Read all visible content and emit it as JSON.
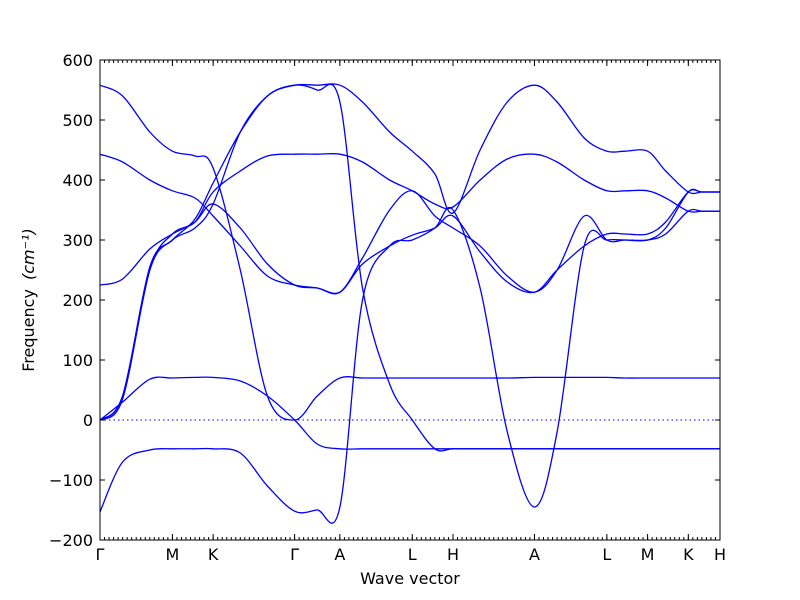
{
  "chart_data": {
    "type": "line",
    "xlabel": "Wave vector",
    "ylabel": "Frequency",
    "ylabel_unit": "(cm⁻¹)",
    "ylim": [
      -200,
      600
    ],
    "yticks": [
      -200,
      -100,
      0,
      100,
      200,
      300,
      400,
      500,
      600
    ],
    "ytick_labels": [
      "−200",
      "−100",
      "0",
      "100",
      "200",
      "300",
      "400",
      "500",
      "600"
    ],
    "xlim": [
      0,
      13.7
    ],
    "x_high_symmetry": [
      {
        "label": "Γ",
        "x": 0
      },
      {
        "label": "M",
        "x": 1.6
      },
      {
        "label": "K",
        "x": 2.5
      },
      {
        "label": "Γ",
        "x": 4.3
      },
      {
        "label": "A",
        "x": 5.3
      },
      {
        "label": "L",
        "x": 6.9
      },
      {
        "label": "H",
        "x": 7.8
      },
      {
        "label": "A",
        "x": 9.6
      },
      {
        "label": "L",
        "x": 11.2
      },
      {
        "label": "M",
        "x": 12.1
      },
      {
        "label": "K",
        "x": 13.0
      },
      {
        "label": "H",
        "x": 13.7
      }
    ],
    "zero_line": true,
    "grid": false,
    "colors": {
      "bands": "#0000ff",
      "frame": "#000000"
    },
    "series": [
      {
        "x": [
          0,
          0.5,
          1.1,
          1.6,
          2.1,
          2.5,
          3.1,
          3.7,
          4.3,
          4.8,
          5.3,
          5.8,
          6.4,
          6.9,
          7.4,
          7.8,
          8.4,
          9.0,
          9.6,
          10.1,
          10.7,
          11.2,
          11.6,
          12.1,
          12.5,
          13.0,
          13.3,
          13.7
        ],
        "values": [
          0,
          40,
          255,
          300,
          335,
          395,
          480,
          540,
          558,
          558,
          558,
          530,
          480,
          448,
          410,
          345,
          450,
          530,
          558,
          530,
          470,
          448,
          448,
          448,
          415,
          380,
          380,
          380
        ]
      },
      {
        "x": [
          0,
          0.5,
          1.1,
          1.6,
          2.1,
          2.5,
          3.1,
          3.7,
          4.3,
          4.8,
          5.3,
          5.8,
          6.4,
          6.9,
          7.4,
          7.8,
          8.4,
          9.0,
          9.6,
          10.1,
          10.7,
          11.2,
          11.6,
          12.1,
          12.5,
          13.0,
          13.3,
          13.7
        ],
        "values": [
          0,
          35,
          250,
          310,
          330,
          380,
          415,
          440,
          443,
          443,
          443,
          430,
          400,
          382,
          360,
          355,
          400,
          435,
          443,
          430,
          400,
          382,
          382,
          382,
          370,
          348,
          348,
          348
        ]
      },
      {
        "x": [
          0,
          0.5,
          1.1,
          1.6,
          2.1,
          2.5,
          3.1,
          3.7,
          4.3,
          4.8,
          5.3,
          5.8,
          6.4,
          6.9,
          7.4,
          7.8,
          8.4,
          9.0,
          9.6,
          10.1,
          10.7,
          11.2,
          11.6,
          12.1,
          12.5,
          13.0,
          13.3,
          13.7
        ],
        "values": [
          225,
          235,
          285,
          310,
          330,
          360,
          320,
          260,
          225,
          220,
          213,
          260,
          290,
          308,
          320,
          340,
          280,
          230,
          213,
          250,
          290,
          310,
          310,
          310,
          330,
          380,
          380,
          380
        ]
      },
      {
        "x": [
          0,
          0.5,
          1.1,
          1.6,
          2.1,
          2.5,
          3.1,
          3.7,
          4.3,
          4.8,
          5.3,
          5.8,
          6.4,
          6.9,
          7.4,
          7.8,
          8.4,
          9.0,
          9.6,
          10.1,
          10.7,
          11.2,
          11.6,
          12.1,
          12.5,
          13.0,
          13.3,
          13.7
        ],
        "values": [
          443,
          430,
          400,
          382,
          370,
          340,
          290,
          240,
          225,
          220,
          213,
          270,
          350,
          382,
          340,
          320,
          290,
          240,
          213,
          250,
          340,
          300,
          300,
          300,
          310,
          348,
          348,
          348
        ]
      },
      {
        "x": [
          0,
          0.5,
          1.1,
          1.6,
          2.1,
          2.5,
          3.1,
          3.7,
          4.3,
          4.8,
          5.3,
          5.8,
          6.4,
          6.9,
          7.4,
          7.8,
          8.4,
          9.0,
          9.6,
          10.1,
          10.7,
          11.2,
          11.6,
          12.1,
          12.5,
          13.0,
          13.3,
          13.7
        ],
        "values": [
          558,
          540,
          480,
          448,
          440,
          420,
          250,
          40,
          0,
          40,
          70,
          70,
          70,
          70,
          70,
          70,
          70,
          70,
          71,
          71,
          71,
          71,
          70,
          70,
          70,
          70,
          70,
          70
        ]
      },
      {
        "x": [
          0,
          0.5,
          1.1,
          1.6,
          2.1,
          2.5,
          3.1,
          3.7,
          4.3,
          4.8,
          5.3,
          5.8,
          6.4,
          6.9,
          7.4,
          7.8,
          8.4,
          9.0,
          9.6,
          10.1,
          10.7,
          11.2,
          11.6,
          12.1,
          12.5,
          13.0,
          13.3,
          13.7
        ],
        "values": [
          0,
          30,
          68,
          70,
          71,
          71,
          65,
          40,
          0,
          -40,
          -48,
          -48,
          -48,
          -48,
          -48,
          -48,
          -48,
          -48,
          -48,
          -48,
          -48,
          -48,
          -48,
          -48,
          -48,
          -48,
          -48,
          -48
        ]
      },
      {
        "x": [
          0,
          0.5,
          1.1,
          1.6,
          2.1,
          2.5,
          3.1,
          3.7,
          4.3,
          4.8,
          5.3,
          5.8,
          6.4,
          6.9,
          7.4,
          7.8,
          8.4,
          9.0,
          9.6,
          10.1,
          10.7,
          11.2,
          11.6,
          12.1,
          12.5,
          13.0,
          13.3,
          13.7
        ],
        "values": [
          -153,
          -70,
          -50,
          -48,
          -48,
          -48,
          -55,
          -110,
          -152,
          -150,
          -145,
          200,
          290,
          300,
          320,
          350,
          220,
          -20,
          -145,
          -20,
          290,
          300,
          300,
          300,
          320,
          380,
          380,
          380
        ]
      },
      {
        "x": [
          0,
          0.5,
          1.1,
          1.6,
          2.1,
          2.5,
          3.1,
          3.7,
          4.3,
          4.8,
          5.3,
          5.8,
          6.4,
          6.9,
          7.4,
          7.8,
          8.4,
          9.0,
          9.6,
          10.1,
          10.7,
          11.2,
          11.6,
          12.1,
          12.5,
          13.0,
          13.3,
          13.7
        ],
        "values": [
          0,
          40,
          250,
          300,
          320,
          360,
          480,
          540,
          558,
          550,
          530,
          220,
          60,
          0,
          -48,
          -48,
          -48,
          -48,
          -48,
          -48,
          -48,
          -48,
          -48,
          -48,
          -48,
          -48,
          -48,
          -48
        ]
      }
    ]
  }
}
